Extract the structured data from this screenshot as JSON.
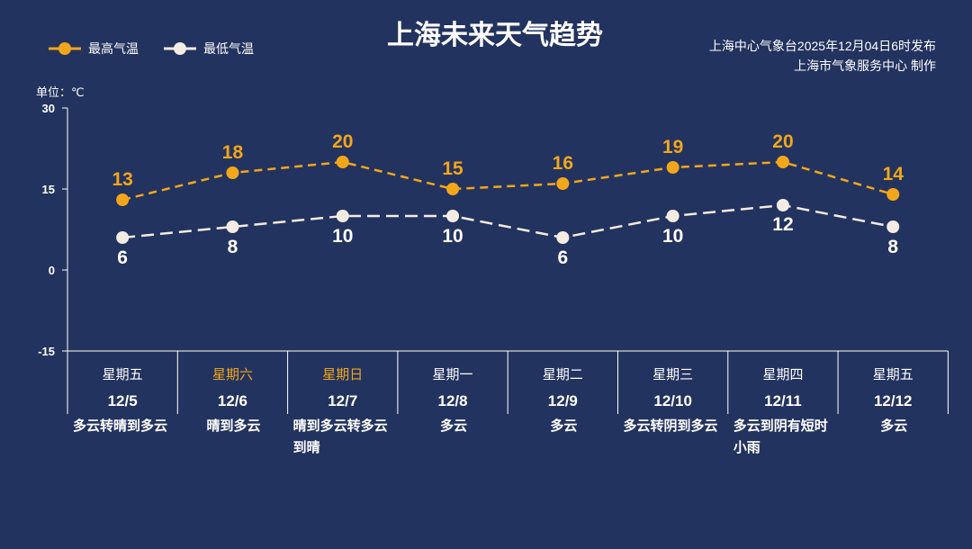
{
  "title": "上海未来天气趋势",
  "source": {
    "line1": "上海中心气象台2025年12月04日6时发布",
    "line2": "上海市气象服务中心 制作"
  },
  "colors": {
    "background": "#23335f",
    "high": "#f2a71b",
    "low": "#f3ece4",
    "weekend": "#f2a71b"
  },
  "chart_data": {
    "type": "line",
    "title": "上海未来天气趋势",
    "ylabel": "单位：℃",
    "ylim": [
      -15,
      30
    ],
    "yticks": [
      30,
      15,
      0,
      -15
    ],
    "categories": [
      "12/5",
      "12/6",
      "12/7",
      "12/8",
      "12/9",
      "12/10",
      "12/11",
      "12/12"
    ],
    "weekdays": [
      "星期五",
      "星期六",
      "星期日",
      "星期一",
      "星期二",
      "星期三",
      "星期四",
      "星期五"
    ],
    "weekend": [
      false,
      true,
      true,
      false,
      false,
      false,
      false,
      false
    ],
    "weather": [
      "多云转晴到多云",
      "晴到多云",
      "晴到多云转多云到晴",
      "多云",
      "多云",
      "多云转阴到多云",
      "多云到阴有短时小雨",
      "多云"
    ],
    "legend_position": "top-left",
    "series": [
      {
        "name": "最高气温",
        "values": [
          13,
          18,
          20,
          15,
          16,
          19,
          20,
          14
        ],
        "color": "#f2a71b"
      },
      {
        "name": "最低气温",
        "values": [
          6,
          8,
          10,
          10,
          6,
          10,
          12,
          8
        ],
        "color": "#f3ece4"
      }
    ]
  }
}
